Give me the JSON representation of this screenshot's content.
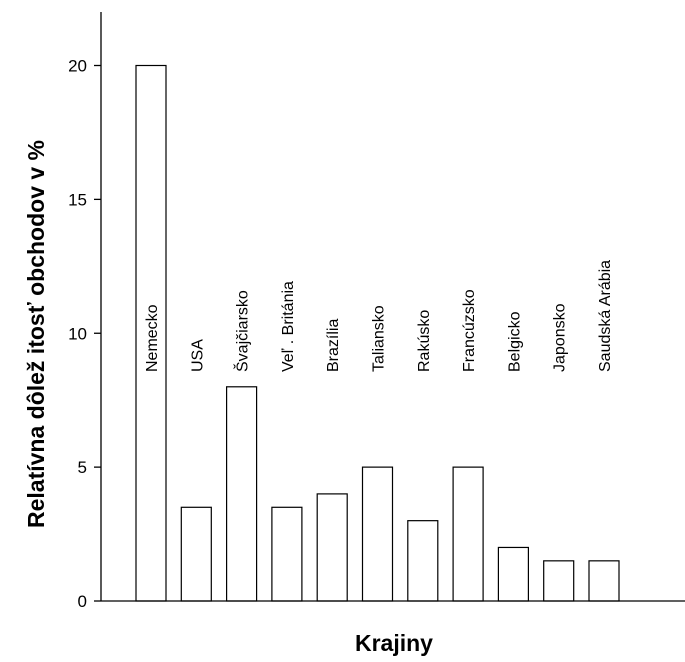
{
  "chart_data": {
    "type": "bar",
    "title": "",
    "xlabel": "Krajiny",
    "ylabel": "Relatívna dôlež itosť  obchodov v %",
    "ylim": [
      0,
      22.5
    ],
    "yticks": [
      0,
      5,
      10,
      15,
      20
    ],
    "grid": false,
    "categories": [
      "Nemecko",
      "USA",
      "Švajčiarsko",
      "Veľ . Británia",
      "Brazília",
      "Taliansko",
      "Rakúsko",
      "Francúzsko",
      "Belgicko",
      "Japonsko",
      "Saudská Arábia"
    ],
    "values": [
      20,
      3.5,
      8,
      3.5,
      4,
      5,
      3,
      5,
      2,
      1.5,
      1.5
    ]
  }
}
